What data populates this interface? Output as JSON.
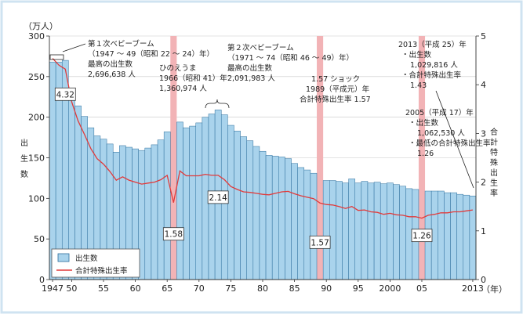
{
  "colors": {
    "bar_fill": "#a9d3ec",
    "bar_stroke": "#2c6e9c",
    "line": "#e23a3a",
    "highlight": "#f2b3b6",
    "background": "#ffffff",
    "border": "#cfe3f1"
  },
  "chart_data": {
    "type": "bar",
    "title": "",
    "y_unit_label": "（万人）",
    "ylabel": "出生数",
    "y2label": "合計特殊出生率",
    "x_end_label": "（年）",
    "ylim": [
      0,
      300
    ],
    "y2lim": [
      0,
      5
    ],
    "y_ticks": [
      0,
      50,
      100,
      150,
      200,
      250,
      300
    ],
    "y2_ticks": [
      0,
      1,
      2,
      3,
      4,
      5
    ],
    "x_range": [
      1947,
      2013
    ],
    "x_ticks": [
      {
        "year": 1947,
        "label": "1947"
      },
      {
        "year": 1950,
        "label": "50"
      },
      {
        "year": 1955,
        "label": "55"
      },
      {
        "year": 1960,
        "label": "60"
      },
      {
        "year": 1965,
        "label": "65"
      },
      {
        "year": 1970,
        "label": "70"
      },
      {
        "year": 1975,
        "label": "75"
      },
      {
        "year": 1980,
        "label": "80"
      },
      {
        "year": 1985,
        "label": "85"
      },
      {
        "year": 1990,
        "label": "90"
      },
      {
        "year": 1995,
        "label": "95"
      },
      {
        "year": 2000,
        "label": "2000"
      },
      {
        "year": 2005,
        "label": "05"
      },
      {
        "year": 2013,
        "label": "2013"
      }
    ],
    "legend": {
      "bars": "出生数",
      "line": "合計特殊出生率",
      "placement": "bottom-left"
    },
    "highlight_years": [
      1966,
      1989,
      2005
    ],
    "years": [
      1947,
      1948,
      1949,
      1950,
      1951,
      1952,
      1953,
      1954,
      1955,
      1956,
      1957,
      1958,
      1959,
      1960,
      1961,
      1962,
      1963,
      1964,
      1965,
      1966,
      1967,
      1968,
      1969,
      1970,
      1971,
      1972,
      1973,
      1974,
      1975,
      1976,
      1977,
      1978,
      1979,
      1980,
      1981,
      1982,
      1983,
      1984,
      1985,
      1986,
      1987,
      1988,
      1989,
      1990,
      1991,
      1992,
      1993,
      1994,
      1995,
      1996,
      1997,
      1998,
      1999,
      2000,
      2001,
      2002,
      2003,
      2004,
      2005,
      2006,
      2007,
      2008,
      2009,
      2010,
      2011,
      2012,
      2013
    ],
    "series": [
      {
        "name": "出生数",
        "kind": "bar",
        "axis": "left",
        "values": [
          268,
          268,
          270,
          234,
          214,
          201,
          187,
          177,
          173,
          167,
          157,
          165,
          163,
          161,
          159,
          162,
          166,
          172,
          182,
          136,
          194,
          187,
          189,
          193,
          200,
          204,
          209,
          203,
          190,
          183,
          176,
          171,
          164,
          158,
          153,
          152,
          151,
          149,
          143,
          138,
          135,
          131,
          125,
          122,
          122,
          121,
          119,
          124,
          119,
          121,
          119,
          120,
          118,
          119,
          117,
          115,
          112,
          111,
          106,
          109,
          109,
          109,
          107,
          107,
          105,
          104,
          103
        ]
      },
      {
        "name": "合計特殊出生率",
        "kind": "line",
        "axis": "right",
        "values": [
          4.54,
          4.4,
          4.32,
          3.65,
          3.26,
          2.98,
          2.69,
          2.48,
          2.37,
          2.22,
          2.04,
          2.11,
          2.04,
          2.0,
          1.96,
          1.98,
          2.0,
          2.05,
          2.14,
          1.58,
          2.23,
          2.13,
          2.13,
          2.13,
          2.16,
          2.14,
          2.14,
          2.05,
          1.91,
          1.85,
          1.8,
          1.79,
          1.77,
          1.75,
          1.74,
          1.77,
          1.8,
          1.81,
          1.76,
          1.72,
          1.69,
          1.66,
          1.57,
          1.54,
          1.53,
          1.5,
          1.46,
          1.5,
          1.42,
          1.43,
          1.39,
          1.38,
          1.34,
          1.36,
          1.33,
          1.32,
          1.29,
          1.29,
          1.26,
          1.32,
          1.34,
          1.37,
          1.37,
          1.39,
          1.39,
          1.41,
          1.43
        ]
      }
    ],
    "data_labels": [
      {
        "year": 1949,
        "text": "4.32"
      },
      {
        "year": 1966,
        "text": "1.58"
      },
      {
        "year": 1973,
        "text": "2.14"
      },
      {
        "year": 1989,
        "text": "1.57"
      },
      {
        "year": 2005,
        "text": "1.26"
      }
    ],
    "annotations": [
      {
        "id": "baby-boom-1",
        "lines": [
          "第１次ベビーブーム",
          "（1947 ～ 49（昭和 22 ～ 24）年）",
          "最高の出生数",
          "2,696,638 人"
        ]
      },
      {
        "id": "hinoeuma",
        "lines": [
          "ひのえうま",
          "1966（昭和 41）年",
          "1,360,974 人"
        ]
      },
      {
        "id": "baby-boom-2",
        "lines": [
          "第２次ベビーブーム",
          "（1971 ～ 74（昭和 46 ～ 49）年）",
          "最高の出生数",
          "2,091,983 人"
        ]
      },
      {
        "id": "shock-157",
        "lines": [
          "1.57 ショック",
          "1989（平成元）年",
          "合計特殊出生率 1.57"
        ]
      },
      {
        "id": "y2005",
        "lines": [
          "2005（平成 17）年",
          "・出生数",
          "1,062,530 人",
          "・最低の合計特殊出生率",
          "1.26"
        ]
      },
      {
        "id": "y2013",
        "lines": [
          "2013（平成 25）年",
          "・出生数",
          "1,029,816 人",
          "・合計特殊出生率",
          "1.43"
        ]
      }
    ]
  }
}
